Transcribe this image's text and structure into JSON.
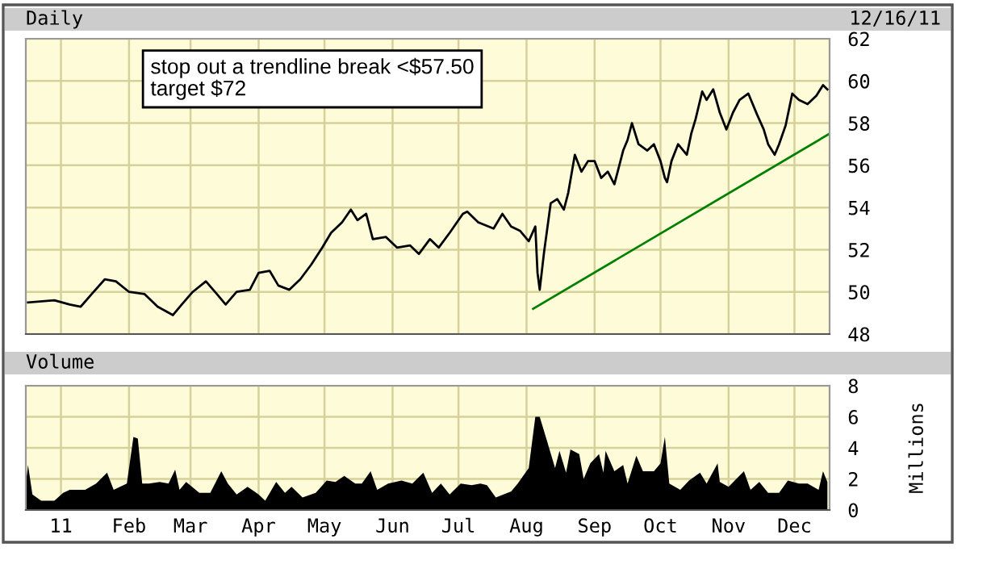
{
  "chart_data": [
    {
      "type": "line",
      "title": "Daily",
      "annotations": [
        "stop out a trendline break <$57.50\ntarget $72",
        "12/16/11"
      ],
      "xlim": [
        "2010-12-16",
        "2011-12-17"
      ],
      "xticks": [
        {
          "value": "2011-01-01",
          "label": null
        },
        {
          "value": "2011-02-01",
          "label": null
        },
        {
          "value": "2011-03-01",
          "label": null
        },
        {
          "value": "2011-04-01",
          "label": null
        },
        {
          "value": "2011-05-01",
          "label": null
        },
        {
          "value": "2011-06-01",
          "label": null
        },
        {
          "value": "2011-07-01",
          "label": null
        },
        {
          "value": "2011-08-01",
          "label": null
        },
        {
          "value": "2011-09-01",
          "label": null
        },
        {
          "value": "2011-10-01",
          "label": null
        },
        {
          "value": "2011-11-01",
          "label": null
        },
        {
          "value": "2011-12-01",
          "label": null
        }
      ],
      "ylim": [
        48,
        62
      ],
      "yticks": [
        48,
        50,
        52,
        54,
        56,
        58,
        60,
        62
      ],
      "grid": true,
      "tick_labels": "y",
      "series": [
        {
          "color": "#000000",
          "x": [
            "2010-12-17",
            "2010-12-29",
            "2011-01-05",
            "2011-01-10",
            "2011-01-15",
            "2011-01-21",
            "2011-01-26",
            "2011-02-01",
            "2011-02-08",
            "2011-02-14",
            "2011-02-21",
            "2011-02-25",
            "2011-03-02",
            "2011-03-08",
            "2011-03-13",
            "2011-03-17",
            "2011-03-22",
            "2011-03-28",
            "2011-04-01",
            "2011-04-06",
            "2011-04-10",
            "2011-04-15",
            "2011-04-20",
            "2011-04-25",
            "2011-04-30",
            "2011-05-04",
            "2011-05-09",
            "2011-05-13",
            "2011-05-16",
            "2011-05-20",
            "2011-05-23",
            "2011-05-29",
            "2011-06-03",
            "2011-06-09",
            "2011-06-13",
            "2011-06-18",
            "2011-06-22",
            "2011-06-27",
            "2011-07-03",
            "2011-07-05",
            "2011-07-10",
            "2011-07-17",
            "2011-07-21",
            "2011-07-25",
            "2011-07-29",
            "2011-08-02",
            "2011-08-05",
            "2011-08-06",
            "2011-08-07",
            "2011-08-09",
            "2011-08-12",
            "2011-08-15",
            "2011-08-18",
            "2011-08-20",
            "2011-08-23",
            "2011-08-26",
            "2011-08-29",
            "2011-09-01",
            "2011-09-04",
            "2011-09-07",
            "2011-09-10",
            "2011-09-14",
            "2011-09-16",
            "2011-09-18",
            "2011-09-21",
            "2011-09-25",
            "2011-09-28",
            "2011-10-01",
            "2011-10-03",
            "2011-10-04",
            "2011-10-06",
            "2011-10-09",
            "2011-10-13",
            "2011-10-15",
            "2011-10-17",
            "2011-10-20",
            "2011-10-22",
            "2011-10-25",
            "2011-10-28",
            "2011-10-31",
            "2011-11-03",
            "2011-11-06",
            "2011-11-10",
            "2011-11-14",
            "2011-11-17",
            "2011-11-19",
            "2011-11-22",
            "2011-11-24",
            "2011-11-27",
            "2011-11-30",
            "2011-12-03",
            "2011-12-07",
            "2011-12-11",
            "2011-12-14",
            "2011-12-16"
          ],
          "values": [
            49.5,
            49.6,
            49.4,
            49.3,
            49.9,
            50.6,
            50.5,
            50.0,
            49.9,
            49.3,
            48.9,
            49.4,
            50.0,
            50.5,
            49.9,
            49.4,
            50.0,
            50.1,
            50.9,
            51.0,
            50.3,
            50.1,
            50.6,
            51.3,
            52.1,
            52.8,
            53.3,
            53.9,
            53.4,
            53.7,
            52.5,
            52.6,
            52.1,
            52.2,
            51.8,
            52.5,
            52.1,
            52.8,
            53.7,
            53.8,
            53.3,
            53.0,
            53.7,
            53.1,
            52.9,
            52.4,
            53.1,
            50.9,
            50.1,
            51.9,
            54.2,
            54.4,
            53.9,
            54.7,
            56.5,
            55.7,
            56.2,
            56.2,
            55.4,
            55.7,
            55.1,
            56.7,
            57.2,
            58.0,
            57.0,
            56.7,
            57.0,
            56.2,
            55.4,
            55.2,
            56.2,
            57.0,
            56.5,
            57.5,
            58.2,
            59.5,
            59.1,
            59.6,
            58.5,
            57.7,
            58.5,
            59.1,
            59.4,
            58.4,
            57.7,
            57.0,
            56.5,
            57.0,
            57.9,
            59.4,
            59.1,
            58.9,
            59.3,
            59.8,
            59.6
          ]
        },
        {
          "color": "#008000",
          "x": [
            "2011-08-04",
            "2011-12-17"
          ],
          "values": [
            49.2,
            57.5
          ]
        }
      ]
    },
    {
      "type": "area",
      "title": "Volume",
      "ylabel": "Millions",
      "xlim": [
        "2010-12-16",
        "2011-12-17"
      ],
      "xticks": [
        {
          "value": "2011-01-01",
          "label": "11"
        },
        {
          "value": "2011-02-01",
          "label": "Feb"
        },
        {
          "value": "2011-03-01",
          "label": "Mar"
        },
        {
          "value": "2011-04-01",
          "label": "Apr"
        },
        {
          "value": "2011-05-01",
          "label": "May"
        },
        {
          "value": "2011-06-01",
          "label": "Jun"
        },
        {
          "value": "2011-07-01",
          "label": "Jul"
        },
        {
          "value": "2011-08-01",
          "label": "Aug"
        },
        {
          "value": "2011-09-01",
          "label": "Sep"
        },
        {
          "value": "2011-10-01",
          "label": "Oct"
        },
        {
          "value": "2011-11-01",
          "label": "Nov"
        },
        {
          "value": "2011-12-01",
          "label": "Dec"
        }
      ],
      "ylim": [
        0,
        8
      ],
      "yticks": [
        0,
        2,
        4,
        6,
        8
      ],
      "grid": true,
      "series": [
        {
          "color": "#000000",
          "x": [
            "2010-12-16",
            "2010-12-17",
            "2010-12-19",
            "2010-12-23",
            "2010-12-29",
            "2011-01-02",
            "2011-01-05",
            "2011-01-12",
            "2011-01-17",
            "2011-01-22",
            "2011-01-25",
            "2011-01-31",
            "2011-02-03",
            "2011-02-05",
            "2011-02-07",
            "2011-02-10",
            "2011-02-15",
            "2011-02-19",
            "2011-02-22",
            "2011-02-24",
            "2011-02-27",
            "2011-03-05",
            "2011-03-10",
            "2011-03-15",
            "2011-03-18",
            "2011-03-22",
            "2011-03-27",
            "2011-04-01",
            "2011-04-04",
            "2011-04-09",
            "2011-04-13",
            "2011-04-16",
            "2011-04-21",
            "2011-04-27",
            "2011-05-02",
            "2011-05-06",
            "2011-05-10",
            "2011-05-15",
            "2011-05-18",
            "2011-05-22",
            "2011-05-25",
            "2011-05-30",
            "2011-06-05",
            "2011-06-10",
            "2011-06-15",
            "2011-06-19",
            "2011-06-23",
            "2011-06-27",
            "2011-07-02",
            "2011-07-07",
            "2011-07-11",
            "2011-07-14",
            "2011-07-18",
            "2011-07-25",
            "2011-07-28",
            "2011-07-30",
            "2011-08-02",
            "2011-08-05",
            "2011-08-07",
            "2011-08-10",
            "2011-08-14",
            "2011-08-16",
            "2011-08-19",
            "2011-08-21",
            "2011-08-25",
            "2011-08-27",
            "2011-08-30",
            "2011-09-03",
            "2011-09-05",
            "2011-09-06",
            "2011-09-10",
            "2011-09-14",
            "2011-09-16",
            "2011-09-20",
            "2011-09-23",
            "2011-09-28",
            "2011-10-01",
            "2011-10-03",
            "2011-10-05",
            "2011-10-10",
            "2011-10-14",
            "2011-10-19",
            "2011-10-22",
            "2011-10-27",
            "2011-10-28",
            "2011-11-01",
            "2011-11-08",
            "2011-11-11",
            "2011-11-15",
            "2011-11-19",
            "2011-11-24",
            "2011-11-28",
            "2011-12-03",
            "2011-12-07",
            "2011-12-12",
            "2011-12-14",
            "2011-12-16"
          ],
          "values": [
            1.7,
            2.9,
            1.0,
            0.6,
            0.6,
            1.1,
            1.3,
            1.3,
            1.7,
            2.4,
            1.3,
            1.7,
            4.7,
            4.6,
            1.7,
            1.7,
            1.8,
            1.7,
            2.6,
            1.3,
            1.8,
            1.1,
            1.1,
            2.5,
            1.7,
            1.0,
            1.5,
            1.0,
            0.6,
            1.8,
            1.1,
            1.5,
            0.8,
            1.1,
            1.9,
            1.8,
            2.2,
            1.7,
            1.7,
            2.5,
            1.3,
            1.7,
            1.9,
            1.7,
            2.4,
            1.1,
            1.7,
            1.0,
            1.7,
            1.6,
            1.7,
            1.6,
            0.8,
            1.2,
            1.7,
            2.1,
            2.7,
            6.0,
            6.0,
            4.6,
            2.7,
            3.8,
            2.4,
            3.9,
            3.6,
            2.0,
            3.0,
            3.6,
            2.4,
            3.8,
            2.5,
            2.9,
            1.7,
            3.5,
            2.5,
            2.5,
            3.0,
            4.7,
            1.7,
            1.3,
            1.9,
            2.4,
            1.7,
            3.0,
            1.8,
            1.5,
            2.5,
            1.3,
            1.8,
            1.1,
            1.1,
            1.9,
            1.7,
            1.7,
            1.3,
            2.5,
            1.8
          ]
        }
      ]
    }
  ]
}
